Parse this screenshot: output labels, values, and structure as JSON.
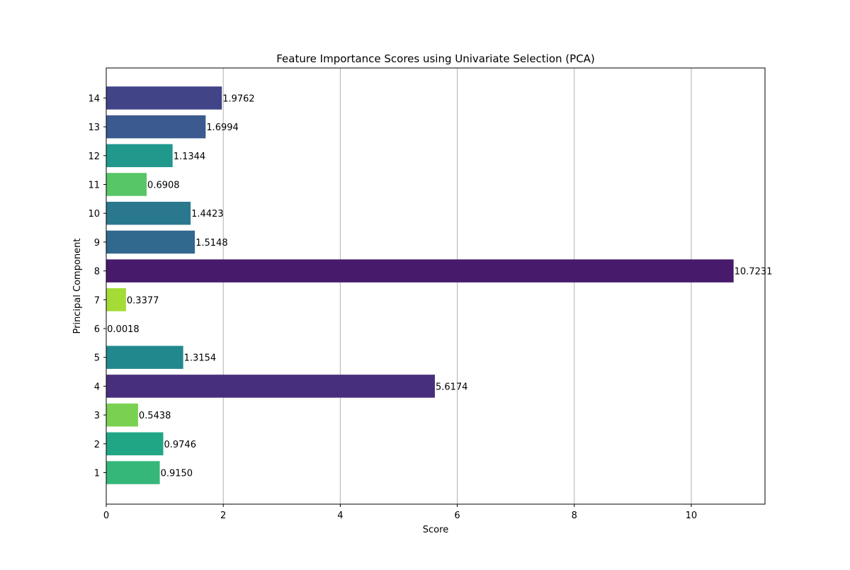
{
  "chart_data": {
    "type": "bar",
    "orientation": "horizontal",
    "title": "Feature Importance Scores using Univariate Selection (PCA)",
    "xlabel": "Score",
    "ylabel": "Principal Component",
    "categories": [
      "1",
      "2",
      "3",
      "4",
      "5",
      "6",
      "7",
      "8",
      "9",
      "10",
      "11",
      "12",
      "13",
      "14"
    ],
    "values": [
      0.915,
      0.9746,
      0.5438,
      5.6174,
      1.3154,
      0.0018,
      0.3377,
      10.7231,
      1.5148,
      1.4423,
      0.6908,
      1.1344,
      1.6994,
      1.9762
    ],
    "value_labels": [
      "0.9150",
      "0.9746",
      "0.5438",
      "5.6174",
      "1.3154",
      "0.0018",
      "0.3377",
      "10.7231",
      "1.5148",
      "1.4423",
      "0.6908",
      "1.1344",
      "1.6994",
      "1.9762"
    ],
    "bar_colors": [
      "#35b779",
      "#21a685",
      "#7ad151",
      "#472f7d",
      "#21898d",
      "#440154",
      "#a5db36",
      "#481a6c",
      "#31688e",
      "#2a788e",
      "#56c667",
      "#20988c",
      "#3b5a8f",
      "#414487"
    ],
    "xlim": [
      0,
      11.26
    ],
    "xticks": [
      0,
      2,
      4,
      6,
      8,
      10
    ],
    "xtick_labels": [
      "0",
      "2",
      "4",
      "6",
      "8",
      "10"
    ],
    "grid": "x",
    "legend": "none"
  }
}
